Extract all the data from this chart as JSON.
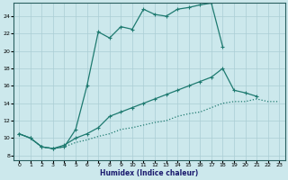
{
  "xlabel": "Humidex (Indice chaleur)",
  "background_color": "#cce8ec",
  "grid_color": "#aacdd4",
  "line_color": "#1e7a70",
  "xlim": [
    -0.5,
    23.5
  ],
  "ylim": [
    7.5,
    25.5
  ],
  "xticks": [
    0,
    1,
    2,
    3,
    4,
    5,
    6,
    7,
    8,
    9,
    10,
    11,
    12,
    13,
    14,
    15,
    16,
    17,
    18,
    19,
    20,
    21,
    22,
    23
  ],
  "yticks": [
    8,
    10,
    12,
    14,
    16,
    18,
    20,
    22,
    24
  ],
  "line1_x": [
    0,
    1,
    2,
    3,
    4,
    5,
    6,
    7,
    8,
    9,
    10,
    11,
    12,
    13,
    14,
    15,
    16,
    17,
    18
  ],
  "line1_y": [
    10.5,
    10.0,
    9.0,
    8.8,
    9.0,
    11.0,
    16.0,
    22.2,
    21.5,
    22.8,
    22.5,
    24.8,
    24.2,
    24.0,
    24.8,
    25.0,
    25.3,
    25.5,
    20.5
  ],
  "line2_x": [
    0,
    1,
    2,
    3,
    4,
    5,
    6,
    7,
    8,
    9,
    10,
    11,
    12,
    13,
    14,
    15,
    16,
    17,
    18,
    19,
    20,
    21
  ],
  "line2_y": [
    10.5,
    10.0,
    9.0,
    8.8,
    9.2,
    10.0,
    10.5,
    11.2,
    12.5,
    13.0,
    13.5,
    14.0,
    14.5,
    15.0,
    15.5,
    16.0,
    16.5,
    17.0,
    18.0,
    15.5,
    15.2,
    14.8
  ],
  "line3_x": [
    0,
    1,
    2,
    3,
    4,
    5,
    6,
    7,
    8,
    9,
    10,
    11,
    12,
    13,
    14,
    15,
    16,
    17,
    18,
    19,
    20,
    21,
    22,
    23
  ],
  "line3_y": [
    10.5,
    10.0,
    9.0,
    8.8,
    9.0,
    9.5,
    9.8,
    10.2,
    10.5,
    11.0,
    11.2,
    11.5,
    11.8,
    12.0,
    12.5,
    12.8,
    13.0,
    13.5,
    14.0,
    14.2,
    14.2,
    14.5,
    14.2,
    14.2
  ]
}
